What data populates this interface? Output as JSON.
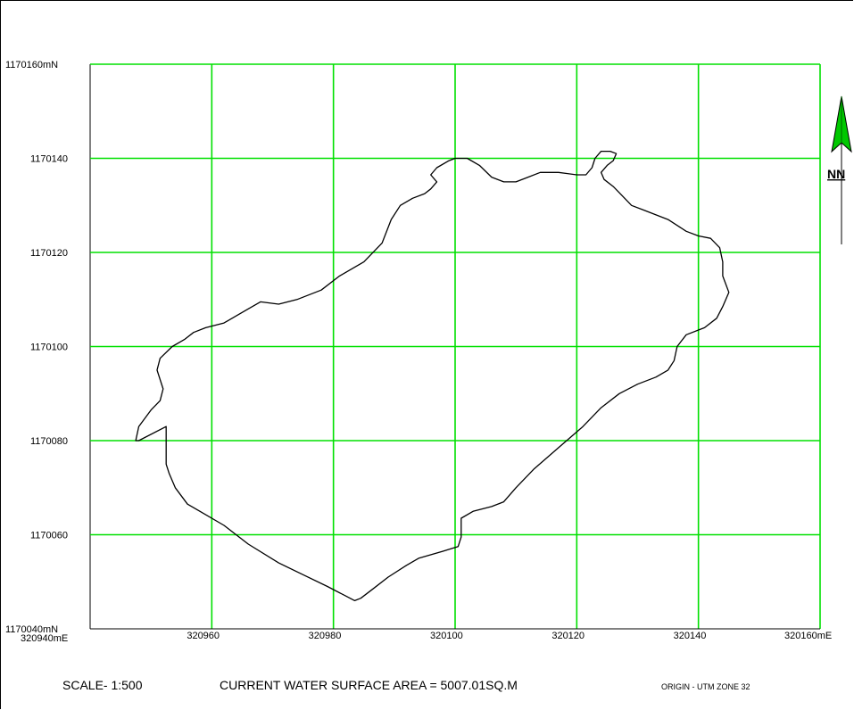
{
  "map": {
    "x_ticks": [
      {
        "label": "320940mE",
        "value": 320940
      },
      {
        "label": "320960",
        "value": 320960
      },
      {
        "label": "320980",
        "value": 320980
      },
      {
        "label": "320100",
        "value": 321000
      },
      {
        "label": "320120",
        "value": 321020
      },
      {
        "label": "320140",
        "value": 321040
      },
      {
        "label": "320160mE",
        "value": 321060
      }
    ],
    "y_ticks": [
      {
        "label": "1170040mN",
        "value": 1170040
      },
      {
        "label": "1170060",
        "value": 1170060
      },
      {
        "label": "1170080",
        "value": 1170080
      },
      {
        "label": "1170100",
        "value": 1170100
      },
      {
        "label": "1170120",
        "value": 1170120
      },
      {
        "label": "1170140",
        "value": 1170140
      },
      {
        "label": "1170160mN",
        "value": 1170160
      }
    ],
    "x_range": [
      320940,
      321060
    ],
    "y_range": [
      1170040,
      1170160
    ],
    "grid_color": "#00e000",
    "boundary": [
      [
        320947.5,
        1170080.0
      ],
      [
        320948.0,
        1170083.0
      ],
      [
        320950.0,
        1170086.5
      ],
      [
        320951.5,
        1170088.5
      ],
      [
        320952.0,
        1170091.0
      ],
      [
        320951.0,
        1170095.0
      ],
      [
        320951.5,
        1170097.5
      ],
      [
        320953.5,
        1170100.0
      ],
      [
        320955.5,
        1170101.5
      ],
      [
        320957.0,
        1170103.0
      ],
      [
        320959.0,
        1170104.0
      ],
      [
        320962.0,
        1170105.0
      ],
      [
        320964.0,
        1170106.5
      ],
      [
        320966.0,
        1170108.0
      ],
      [
        320968.0,
        1170109.5
      ],
      [
        320971.0,
        1170109.0
      ],
      [
        320974.0,
        1170110.0
      ],
      [
        320978.0,
        1170112.0
      ],
      [
        320981.0,
        1170115.0
      ],
      [
        320985.0,
        1170118.0
      ],
      [
        320988.0,
        1170122.0
      ],
      [
        320989.5,
        1170127.0
      ],
      [
        320991.0,
        1170130.0
      ],
      [
        320993.0,
        1170131.5
      ],
      [
        320995.0,
        1170132.5
      ],
      [
        320996.0,
        1170133.5
      ],
      [
        320997.0,
        1170135.0
      ],
      [
        320996.0,
        1170136.5
      ],
      [
        320997.0,
        1170138.0
      ],
      [
        320999.0,
        1170139.5
      ],
      [
        321000.0,
        1170140.0
      ],
      [
        321002.0,
        1170140.0
      ],
      [
        321004.0,
        1170138.5
      ],
      [
        321006.0,
        1170136.0
      ],
      [
        321008.0,
        1170135.0
      ],
      [
        321010.0,
        1170135.0
      ],
      [
        321012.0,
        1170136.0
      ],
      [
        321014.0,
        1170137.0
      ],
      [
        321017.0,
        1170137.0
      ],
      [
        321020.0,
        1170136.5
      ],
      [
        321021.5,
        1170136.5
      ],
      [
        321022.5,
        1170138.0
      ],
      [
        321023.0,
        1170140.0
      ],
      [
        321024.0,
        1170141.5
      ],
      [
        321025.5,
        1170141.5
      ],
      [
        321026.5,
        1170141.0
      ],
      [
        321026.0,
        1170139.5
      ],
      [
        321025.0,
        1170138.5
      ],
      [
        321024.0,
        1170137.0
      ],
      [
        321024.5,
        1170135.5
      ],
      [
        321026.0,
        1170134.0
      ],
      [
        321027.5,
        1170132.0
      ],
      [
        321029.0,
        1170130.0
      ],
      [
        321031.0,
        1170129.0
      ],
      [
        321035.0,
        1170127.0
      ],
      [
        321038.0,
        1170124.5
      ],
      [
        321040.0,
        1170123.5
      ],
      [
        321042.0,
        1170123.0
      ],
      [
        321043.5,
        1170121.0
      ],
      [
        321044.0,
        1170118.0
      ],
      [
        321044.0,
        1170115.0
      ],
      [
        321045.0,
        1170111.5
      ],
      [
        321044.0,
        1170108.5
      ],
      [
        321043.0,
        1170106.0
      ],
      [
        321041.0,
        1170104.0
      ],
      [
        321038.0,
        1170102.5
      ],
      [
        321036.5,
        1170100.0
      ],
      [
        321036.0,
        1170097.0
      ],
      [
        321035.0,
        1170095.0
      ],
      [
        321033.0,
        1170093.5
      ],
      [
        321030.0,
        1170092.0
      ],
      [
        321027.0,
        1170090.0
      ],
      [
        321024.0,
        1170087.0
      ],
      [
        321021.0,
        1170083.0
      ],
      [
        321017.0,
        1170078.5
      ],
      [
        321013.0,
        1170074.0
      ],
      [
        321010.0,
        1170070.0
      ],
      [
        321008.0,
        1170067.0
      ],
      [
        321006.0,
        1170066.0
      ],
      [
        321003.0,
        1170065.0
      ],
      [
        321001.0,
        1170063.5
      ],
      [
        321001.0,
        1170061.5
      ],
      [
        321001.0,
        1170059.5
      ],
      [
        321000.5,
        1170057.5
      ],
      [
        320998.0,
        1170056.5
      ],
      [
        320994.0,
        1170055.0
      ],
      [
        320992.0,
        1170053.5
      ],
      [
        320989.0,
        1170051.0
      ],
      [
        320986.5,
        1170048.5
      ],
      [
        320984.5,
        1170046.5
      ],
      [
        320983.5,
        1170046.0
      ],
      [
        320982.0,
        1170047.0
      ],
      [
        320979.0,
        1170049.0
      ],
      [
        320975.0,
        1170051.5
      ],
      [
        320971.0,
        1170054.0
      ],
      [
        320966.0,
        1170058.0
      ],
      [
        320962.0,
        1170062.0
      ],
      [
        320958.0,
        1170065.0
      ],
      [
        320956.0,
        1170066.5
      ],
      [
        320954.0,
        1170070.0
      ],
      [
        320953.0,
        1170073.0
      ],
      [
        320952.5,
        1170075.0
      ],
      [
        320952.5,
        1170077.0
      ],
      [
        320952.5,
        1170083.0
      ],
      [
        320948.0,
        1170080.0
      ]
    ],
    "north_label": "NN"
  },
  "footer": {
    "scale": "SCALE- 1:500",
    "area": "CURRENT WATER SURFACE AREA = 5007.01SQ.M",
    "origin": "ORIGIN - UTM ZONE 32"
  }
}
